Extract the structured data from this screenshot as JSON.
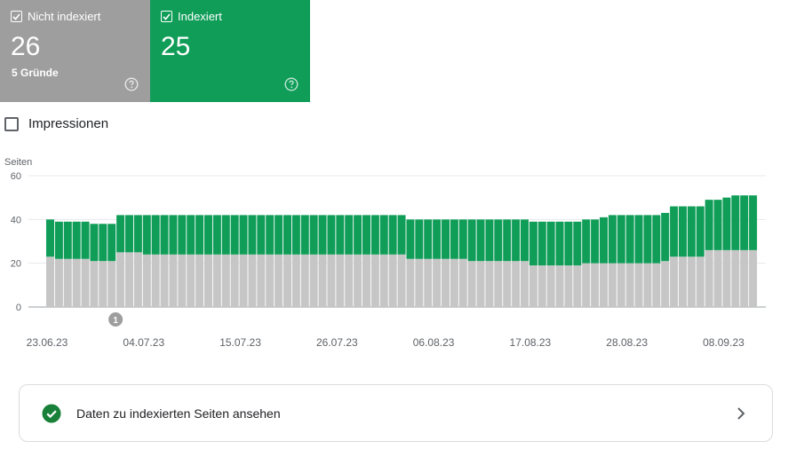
{
  "cards": {
    "not_indexed": {
      "title": "Nicht indexiert",
      "count": "26",
      "sub": "5 Gründe",
      "color": "#9e9e9e",
      "help_icon": "help-circle-icon"
    },
    "indexed": {
      "title": "Indexiert",
      "count": "25",
      "color": "#0f9d58",
      "help_icon": "help-circle-icon"
    }
  },
  "impressions": {
    "label": "Impressionen",
    "checked": false
  },
  "chart_data": {
    "type": "bar",
    "stacked": true,
    "ylabel": "Seiten",
    "ylim": [
      0,
      60
    ],
    "yticks": [
      "0",
      "20",
      "40",
      "60"
    ],
    "grid": true,
    "x_tick_labels": [
      "23.06.23",
      "04.07.23",
      "15.07.23",
      "26.07.23",
      "06.08.23",
      "17.08.23",
      "28.08.23",
      "08.09.23"
    ],
    "x_tick_days_from_first": [
      0,
      11,
      22,
      33,
      44,
      55,
      66,
      77
    ],
    "series": [
      {
        "color": "#c6c6c6",
        "values": [
          23,
          22,
          22,
          22,
          22,
          21,
          21,
          21,
          25,
          25,
          25,
          24,
          24,
          24,
          24,
          24,
          24,
          24,
          24,
          24,
          24,
          24,
          24,
          24,
          24,
          24,
          24,
          24,
          24,
          24,
          24,
          24,
          24,
          24,
          24,
          24,
          24,
          24,
          24,
          24,
          24,
          22,
          22,
          22,
          22,
          22,
          22,
          22,
          21,
          21,
          21,
          21,
          21,
          21,
          21,
          19,
          19,
          19,
          19,
          19,
          19,
          20,
          20,
          20,
          20,
          20,
          20,
          20,
          20,
          20,
          21,
          23,
          23,
          23,
          23,
          26,
          26,
          26,
          26,
          26,
          26
        ]
      },
      {
        "color": "#0f9d58",
        "values": [
          17,
          17,
          17,
          17,
          17,
          17,
          17,
          17,
          17,
          17,
          17,
          18,
          18,
          18,
          18,
          18,
          18,
          18,
          18,
          18,
          18,
          18,
          18,
          18,
          18,
          18,
          18,
          18,
          18,
          18,
          18,
          18,
          18,
          18,
          18,
          18,
          18,
          18,
          18,
          18,
          18,
          18,
          18,
          18,
          18,
          18,
          18,
          18,
          19,
          19,
          19,
          19,
          19,
          19,
          19,
          20,
          20,
          20,
          20,
          20,
          20,
          20,
          20,
          21,
          22,
          22,
          22,
          22,
          22,
          22,
          22,
          23,
          23,
          23,
          23,
          23,
          23,
          24,
          25,
          25,
          25
        ]
      }
    ],
    "annotations": [
      {
        "x_index": 8,
        "label": "1"
      }
    ]
  },
  "cta": {
    "label": "Daten zu indexierten Seiten ansehen",
    "icon": "check-circle-icon",
    "chevron": "chevron-right-icon"
  }
}
